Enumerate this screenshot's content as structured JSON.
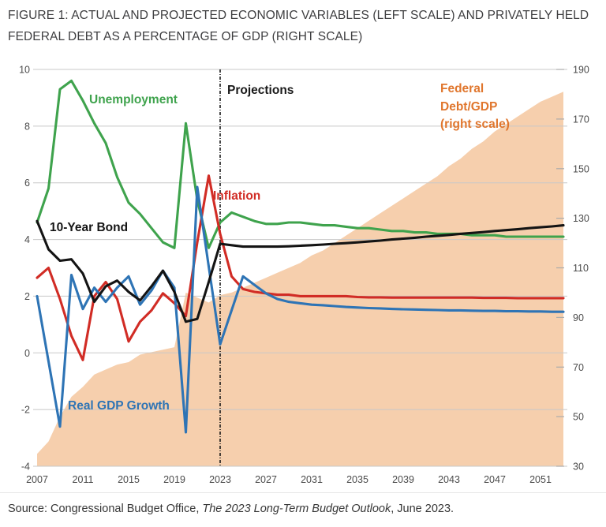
{
  "title": {
    "line1": "FIGURE 1: ACTUAL AND PROJECTED ECONOMIC VARIABLES (LEFT SCALE) AND PRIVATELY HELD",
    "line2": "FEDERAL DEBT AS A PERCENTAGE OF GDP (RIGHT SCALE)"
  },
  "source": {
    "prefix": "Source: Congressional Budget Office, ",
    "italic": "The 2023 Long-Term Budget Outlook",
    "suffix": ", June 2023."
  },
  "labels": {
    "unemployment": "Unemployment",
    "projections": "Projections",
    "inflation": "Inflation",
    "bond": "10-Year Bond",
    "gdp": "Real GDP Growth",
    "debt_lines": [
      "Federal",
      "Debt/GDP",
      "(right scale)"
    ]
  },
  "colors": {
    "unemployment": "#3FA34D",
    "inflation": "#D12C25",
    "bond": "#141414",
    "gdp": "#2E74B5",
    "debt_area": "#F6CFAD",
    "debt_label": "#E0762D",
    "grid": "#C8C8C8",
    "tick_text": "#4B4B4B",
    "divider": "#1A1A1A"
  },
  "chart_data": {
    "type": "line+area",
    "title": "Actual and projected economic variables (left scale) and privately held federal debt as a percentage of GDP (right scale)",
    "left_axis": {
      "range": [
        -4,
        10
      ],
      "ticks": [
        "10",
        "8",
        "6",
        "4",
        "2",
        "0",
        "-2",
        "-4"
      ]
    },
    "right_axis": {
      "range": [
        30,
        190
      ],
      "ticks": [
        "190",
        "170",
        "150",
        "130",
        "110",
        "90",
        "70",
        "50",
        "30"
      ]
    },
    "x_axis": {
      "range": [
        2007,
        2053
      ],
      "ticks": [
        "2007",
        "2011",
        "2015",
        "2019",
        "2023",
        "2027",
        "2031",
        "2035",
        "2039",
        "2043",
        "2047",
        "2051"
      ]
    },
    "divider": {
      "year": 2023,
      "label": "Projections"
    },
    "grid": "on",
    "series": [
      {
        "name": "Federal Debt/GDP",
        "type": "area",
        "axis": "right",
        "color": "#F6CFAD",
        "points": [
          [
            2007,
            35
          ],
          [
            2008,
            40
          ],
          [
            2009,
            50
          ],
          [
            2010,
            58
          ],
          [
            2011,
            62
          ],
          [
            2012,
            67
          ],
          [
            2013,
            69
          ],
          [
            2014,
            71
          ],
          [
            2015,
            72
          ],
          [
            2016,
            75
          ],
          [
            2017,
            76
          ],
          [
            2018,
            77
          ],
          [
            2019,
            78
          ],
          [
            2020,
            100
          ],
          [
            2021,
            98
          ],
          [
            2022,
            96
          ],
          [
            2023,
            99
          ],
          [
            2024,
            100
          ],
          [
            2025,
            102
          ],
          [
            2026,
            104
          ],
          [
            2027,
            106
          ],
          [
            2028,
            108
          ],
          [
            2029,
            110
          ],
          [
            2030,
            112
          ],
          [
            2031,
            115
          ],
          [
            2032,
            117
          ],
          [
            2033,
            120
          ],
          [
            2034,
            123
          ],
          [
            2035,
            126
          ],
          [
            2036,
            129
          ],
          [
            2037,
            132
          ],
          [
            2038,
            135
          ],
          [
            2039,
            138
          ],
          [
            2040,
            141
          ],
          [
            2041,
            144
          ],
          [
            2042,
            147
          ],
          [
            2043,
            151
          ],
          [
            2044,
            154
          ],
          [
            2045,
            158
          ],
          [
            2046,
            161
          ],
          [
            2047,
            165
          ],
          [
            2048,
            168
          ],
          [
            2049,
            171
          ],
          [
            2050,
            174
          ],
          [
            2051,
            177
          ],
          [
            2052,
            179
          ],
          [
            2053,
            181
          ]
        ]
      },
      {
        "name": "Unemployment",
        "type": "line",
        "axis": "left",
        "color": "#3FA34D",
        "points": [
          [
            2007,
            4.6
          ],
          [
            2008,
            5.8
          ],
          [
            2009,
            9.3
          ],
          [
            2010,
            9.6
          ],
          [
            2011,
            8.9
          ],
          [
            2012,
            8.1
          ],
          [
            2013,
            7.4
          ],
          [
            2014,
            6.2
          ],
          [
            2015,
            5.3
          ],
          [
            2016,
            4.9
          ],
          [
            2017,
            4.4
          ],
          [
            2018,
            3.9
          ],
          [
            2019,
            3.7
          ],
          [
            2020,
            8.1
          ],
          [
            2021,
            5.4
          ],
          [
            2022,
            3.7
          ],
          [
            2023,
            4.6
          ],
          [
            2024,
            4.95
          ],
          [
            2025,
            4.8
          ],
          [
            2026,
            4.65
          ],
          [
            2027,
            4.55
          ],
          [
            2028,
            4.55
          ],
          [
            2029,
            4.6
          ],
          [
            2030,
            4.6
          ],
          [
            2031,
            4.55
          ],
          [
            2032,
            4.5
          ],
          [
            2033,
            4.5
          ],
          [
            2034,
            4.45
          ],
          [
            2035,
            4.4
          ],
          [
            2036,
            4.4
          ],
          [
            2037,
            4.35
          ],
          [
            2038,
            4.3
          ],
          [
            2039,
            4.3
          ],
          [
            2040,
            4.25
          ],
          [
            2041,
            4.25
          ],
          [
            2042,
            4.2
          ],
          [
            2043,
            4.2
          ],
          [
            2044,
            4.2
          ],
          [
            2045,
            4.15
          ],
          [
            2046,
            4.15
          ],
          [
            2047,
            4.15
          ],
          [
            2048,
            4.1
          ],
          [
            2049,
            4.1
          ],
          [
            2050,
            4.1
          ],
          [
            2051,
            4.1
          ],
          [
            2052,
            4.1
          ],
          [
            2053,
            4.1
          ]
        ]
      },
      {
        "name": "Inflation",
        "type": "line",
        "axis": "left",
        "color": "#D12C25",
        "points": [
          [
            2007,
            2.65
          ],
          [
            2008,
            3.0
          ],
          [
            2009,
            1.9
          ],
          [
            2010,
            0.6
          ],
          [
            2011,
            -0.25
          ],
          [
            2012,
            2.0
          ],
          [
            2013,
            2.5
          ],
          [
            2014,
            1.9
          ],
          [
            2015,
            0.4
          ],
          [
            2016,
            1.1
          ],
          [
            2017,
            1.5
          ],
          [
            2018,
            2.1
          ],
          [
            2019,
            1.75
          ],
          [
            2020,
            1.3
          ],
          [
            2021,
            3.9
          ],
          [
            2022,
            6.25
          ],
          [
            2023,
            4.2
          ],
          [
            2024,
            2.7
          ],
          [
            2025,
            2.25
          ],
          [
            2026,
            2.15
          ],
          [
            2027,
            2.1
          ],
          [
            2028,
            2.05
          ],
          [
            2029,
            2.05
          ],
          [
            2030,
            2.0
          ],
          [
            2031,
            2.0
          ],
          [
            2032,
            2.0
          ],
          [
            2033,
            2.0
          ],
          [
            2034,
            2.0
          ],
          [
            2035,
            1.97
          ],
          [
            2036,
            1.96
          ],
          [
            2037,
            1.96
          ],
          [
            2038,
            1.95
          ],
          [
            2039,
            1.95
          ],
          [
            2040,
            1.95
          ],
          [
            2041,
            1.95
          ],
          [
            2042,
            1.95
          ],
          [
            2043,
            1.95
          ],
          [
            2044,
            1.95
          ],
          [
            2045,
            1.95
          ],
          [
            2046,
            1.94
          ],
          [
            2047,
            1.94
          ],
          [
            2048,
            1.94
          ],
          [
            2049,
            1.93
          ],
          [
            2050,
            1.93
          ],
          [
            2051,
            1.93
          ],
          [
            2052,
            1.93
          ],
          [
            2053,
            1.93
          ]
        ]
      },
      {
        "name": "Real GDP Growth",
        "type": "line",
        "axis": "left",
        "color": "#2E74B5",
        "points": [
          [
            2007,
            2.0
          ],
          [
            2008,
            -0.3
          ],
          [
            2009,
            -2.6
          ],
          [
            2010,
            2.75
          ],
          [
            2011,
            1.55
          ],
          [
            2012,
            2.3
          ],
          [
            2013,
            1.8
          ],
          [
            2014,
            2.3
          ],
          [
            2015,
            2.7
          ],
          [
            2016,
            1.7
          ],
          [
            2017,
            2.2
          ],
          [
            2018,
            2.9
          ],
          [
            2019,
            2.3
          ],
          [
            2020,
            -2.8
          ],
          [
            2021,
            5.85
          ],
          [
            2022,
            3.05
          ],
          [
            2023,
            0.3
          ],
          [
            2024,
            1.5
          ],
          [
            2025,
            2.7
          ],
          [
            2026,
            2.4
          ],
          [
            2027,
            2.1
          ],
          [
            2028,
            1.9
          ],
          [
            2029,
            1.8
          ],
          [
            2030,
            1.75
          ],
          [
            2031,
            1.7
          ],
          [
            2032,
            1.68
          ],
          [
            2033,
            1.65
          ],
          [
            2034,
            1.62
          ],
          [
            2035,
            1.6
          ],
          [
            2036,
            1.58
          ],
          [
            2037,
            1.57
          ],
          [
            2038,
            1.55
          ],
          [
            2039,
            1.54
          ],
          [
            2040,
            1.53
          ],
          [
            2041,
            1.52
          ],
          [
            2042,
            1.51
          ],
          [
            2043,
            1.5
          ],
          [
            2044,
            1.5
          ],
          [
            2045,
            1.49
          ],
          [
            2046,
            1.48
          ],
          [
            2047,
            1.48
          ],
          [
            2048,
            1.47
          ],
          [
            2049,
            1.47
          ],
          [
            2050,
            1.46
          ],
          [
            2051,
            1.46
          ],
          [
            2052,
            1.45
          ],
          [
            2053,
            1.45
          ]
        ]
      },
      {
        "name": "10-Year Bond",
        "type": "line",
        "axis": "left",
        "color": "#141414",
        "points": [
          [
            2007,
            4.65
          ],
          [
            2008,
            3.65
          ],
          [
            2009,
            3.25
          ],
          [
            2010,
            3.3
          ],
          [
            2011,
            2.8
          ],
          [
            2012,
            1.8
          ],
          [
            2013,
            2.35
          ],
          [
            2014,
            2.55
          ],
          [
            2015,
            2.15
          ],
          [
            2016,
            1.85
          ],
          [
            2017,
            2.35
          ],
          [
            2018,
            2.9
          ],
          [
            2019,
            2.15
          ],
          [
            2020,
            1.1
          ],
          [
            2021,
            1.2
          ],
          [
            2022,
            2.5
          ],
          [
            2023,
            3.85
          ],
          [
            2024,
            3.8
          ],
          [
            2025,
            3.75
          ],
          [
            2026,
            3.75
          ],
          [
            2027,
            3.75
          ],
          [
            2028,
            3.75
          ],
          [
            2029,
            3.76
          ],
          [
            2030,
            3.78
          ],
          [
            2031,
            3.8
          ],
          [
            2032,
            3.82
          ],
          [
            2033,
            3.85
          ],
          [
            2034,
            3.87
          ],
          [
            2035,
            3.9
          ],
          [
            2036,
            3.93
          ],
          [
            2037,
            3.96
          ],
          [
            2038,
            4.0
          ],
          [
            2039,
            4.03
          ],
          [
            2040,
            4.06
          ],
          [
            2041,
            4.1
          ],
          [
            2042,
            4.13
          ],
          [
            2043,
            4.16
          ],
          [
            2044,
            4.2
          ],
          [
            2045,
            4.23
          ],
          [
            2046,
            4.26
          ],
          [
            2047,
            4.3
          ],
          [
            2048,
            4.33
          ],
          [
            2049,
            4.36
          ],
          [
            2050,
            4.4
          ],
          [
            2051,
            4.43
          ],
          [
            2052,
            4.46
          ],
          [
            2053,
            4.5
          ]
        ]
      }
    ]
  }
}
